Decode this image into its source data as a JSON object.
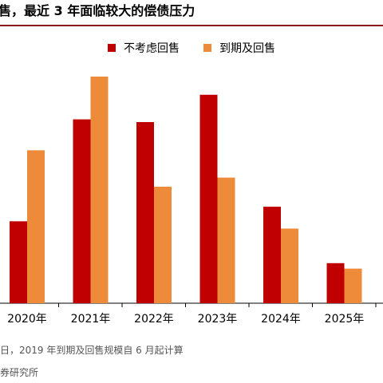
{
  "header": {
    "title": "售，最近 3 年面临较大的偿债压力"
  },
  "footer": {
    "note": "日，2019 年到期及回售规模自 6 月起计算",
    "source": "券研究所"
  },
  "colors": {
    "series1": "#c00000",
    "series2": "#ed8b3a",
    "title_rule": "#8b1a1a",
    "axis": "#000000"
  },
  "chart_data": {
    "type": "bar",
    "title": "",
    "xlabel": "",
    "ylabel": "",
    "grid": false,
    "legend_position": "top-center",
    "categories": [
      "2020年",
      "2021年",
      "2022年",
      "2023年",
      "2024年",
      "2025年"
    ],
    "series": [
      {
        "name": "不考虑回售",
        "values": [
          90,
          202,
          199,
          229,
          106,
          44
        ]
      },
      {
        "name": "到期及回售",
        "values": [
          168,
          249,
          128,
          138,
          82,
          38
        ]
      }
    ],
    "ylim": [
      0,
      270
    ]
  }
}
